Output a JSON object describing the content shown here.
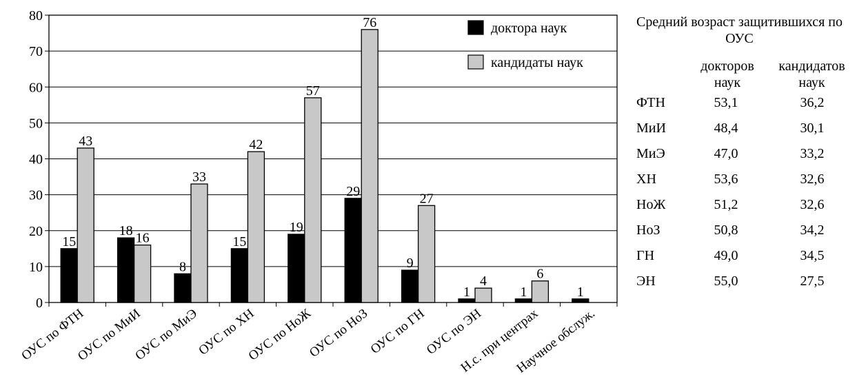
{
  "chart_data": {
    "type": "bar",
    "categories": [
      "ОУС по ФТН",
      "ОУС по МиИ",
      "ОУС по МиЭ",
      "ОУС по ХН",
      "ОУС по НоЖ",
      "ОУС по НоЗ",
      "ОУС по ГН",
      "ОУС по ЭН",
      "Н.с. при центрах",
      "Научное обслуж."
    ],
    "series": [
      {
        "name": "доктора наук",
        "values": [
          15,
          18,
          8,
          15,
          19,
          29,
          9,
          1,
          1,
          1
        ],
        "color": "#000000"
      },
      {
        "name": "кандидаты наук",
        "values": [
          43,
          16,
          33,
          42,
          57,
          76,
          27,
          4,
          6,
          null
        ],
        "color": "#c8c8c8"
      }
    ],
    "ylim": [
      0,
      80
    ],
    "yticks": [
      0,
      10,
      20,
      30,
      40,
      50,
      60,
      70,
      80
    ],
    "grid": true,
    "legend_position": "top-right"
  },
  "side_table": {
    "title": "Средний возраст защитившихся по ОУС",
    "col_doctors": "докторов наук",
    "col_candidates": "кандидатов наук",
    "rows": [
      {
        "label": "ФТН",
        "doctors": "53,1",
        "candidates": "36,2"
      },
      {
        "label": "МиИ",
        "doctors": "48,4",
        "candidates": "30,1"
      },
      {
        "label": "МиЭ",
        "doctors": "47,0",
        "candidates": "33,2"
      },
      {
        "label": "ХН",
        "doctors": "53,6",
        "candidates": "32,6"
      },
      {
        "label": "НоЖ",
        "doctors": "51,2",
        "candidates": "32,6"
      },
      {
        "label": "НоЗ",
        "doctors": "50,8",
        "candidates": "34,2"
      },
      {
        "label": "ГН",
        "doctors": "49,0",
        "candidates": "34,5"
      },
      {
        "label": "ЭН",
        "doctors": "55,0",
        "candidates": "27,5"
      }
    ]
  }
}
